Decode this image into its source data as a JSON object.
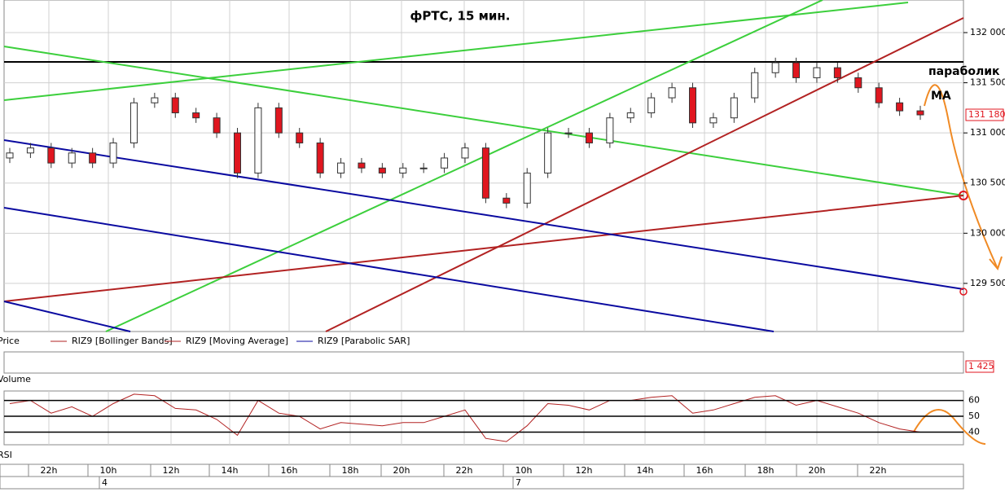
{
  "chart_data": [
    {
      "type": "candlestick",
      "title": "фРТС,  15 мин.",
      "annotations": [
        "параболик",
        "MA"
      ],
      "legend": [
        "Price",
        "RIZ9 [Bollinger Bands]",
        "RIZ9 [Moving Average]",
        "RIZ9 [Parabolic SAR]"
      ],
      "up_color": "#ffffff",
      "down_color": "#e0161f",
      "open": [
        130750,
        130800,
        130850,
        130700,
        130800,
        130700,
        130900,
        131300,
        131350,
        131200,
        131150,
        131000,
        130600,
        131250,
        131000,
        130900,
        130600,
        130700,
        130650,
        130600,
        130650,
        130650,
        130750,
        130850,
        130350,
        130300,
        130600,
        131000,
        131000,
        130900,
        131150,
        131200,
        131350,
        131450,
        131100,
        131150,
        131350,
        131600,
        131700,
        131550,
        131650,
        131550,
        131450,
        131300,
        131220
      ],
      "high": [
        130850,
        130900,
        130900,
        130850,
        130850,
        130950,
        131350,
        131400,
        131400,
        131250,
        131200,
        131050,
        131300,
        131300,
        131050,
        130950,
        130750,
        130750,
        130700,
        130700,
        130700,
        130800,
        130900,
        130900,
        130400,
        130650,
        131050,
        131050,
        131050,
        131200,
        131250,
        131400,
        131500,
        131500,
        131200,
        131400,
        131650,
        131750,
        131750,
        131700,
        131700,
        131600,
        131500,
        131350,
        131270
      ],
      "low": [
        130700,
        130750,
        130650,
        130650,
        130650,
        130650,
        130850,
        131250,
        131150,
        131100,
        130950,
        130550,
        130550,
        130950,
        130850,
        130550,
        130550,
        130600,
        130550,
        130550,
        130600,
        130600,
        130700,
        130300,
        130250,
        130250,
        130550,
        130950,
        130850,
        130850,
        131100,
        131150,
        131300,
        131050,
        131050,
        131100,
        131300,
        131550,
        131500,
        131500,
        131500,
        131400,
        131250,
        131170,
        131130
      ],
      "close": [
        130800,
        130850,
        130700,
        130800,
        130700,
        130900,
        131300,
        131350,
        131200,
        131150,
        131000,
        130600,
        131250,
        131000,
        130900,
        130600,
        130700,
        130650,
        130600,
        130650,
        130650,
        130750,
        130850,
        130350,
        130300,
        130600,
        131000,
        131000,
        130900,
        131150,
        131200,
        131350,
        131450,
        131100,
        131150,
        131350,
        131600,
        131700,
        131550,
        131650,
        131550,
        131450,
        131300,
        131220,
        131180
      ],
      "ylim": [
        129020,
        132325
      ],
      "yticks": [
        {
          "value": 132000,
          "label": "132 000"
        },
        {
          "value": 131500,
          "label": "131 500"
        },
        {
          "value": 131000,
          "label": "131 000"
        },
        {
          "value": 130500,
          "label": "130 500"
        },
        {
          "value": 130000,
          "label": "130 000"
        },
        {
          "value": 129500,
          "label": "129 500"
        }
      ],
      "last_price": {
        "value": 131180,
        "label": "131 180"
      },
      "grid": true
    },
    {
      "type": "bar",
      "title": "Volume",
      "last_value": {
        "value": 1425,
        "label": "1 425"
      }
    },
    {
      "type": "line",
      "title": "RSI",
      "color": "#b22222",
      "values": [
        58,
        60,
        52,
        56,
        50,
        58,
        64,
        63,
        55,
        54,
        48,
        38,
        60,
        52,
        50,
        42,
        46,
        45,
        44,
        46,
        46,
        50,
        54,
        36,
        34,
        44,
        58,
        57,
        54,
        60,
        60,
        62,
        63,
        52,
        54,
        58,
        62,
        63,
        57,
        60,
        56,
        52,
        46,
        42,
        40
      ],
      "ylim": [
        32,
        66
      ],
      "yticks": [
        40,
        50,
        60
      ],
      "grid": true
    }
  ],
  "time_axis": {
    "labels": [
      "22h",
      "10h",
      "12h",
      "14h",
      "16h",
      "18h",
      "20h",
      "22h",
      "10h",
      "12h",
      "14h",
      "16h",
      "18h",
      "20h",
      "22h"
    ],
    "dates": [
      "4",
      "7"
    ]
  }
}
